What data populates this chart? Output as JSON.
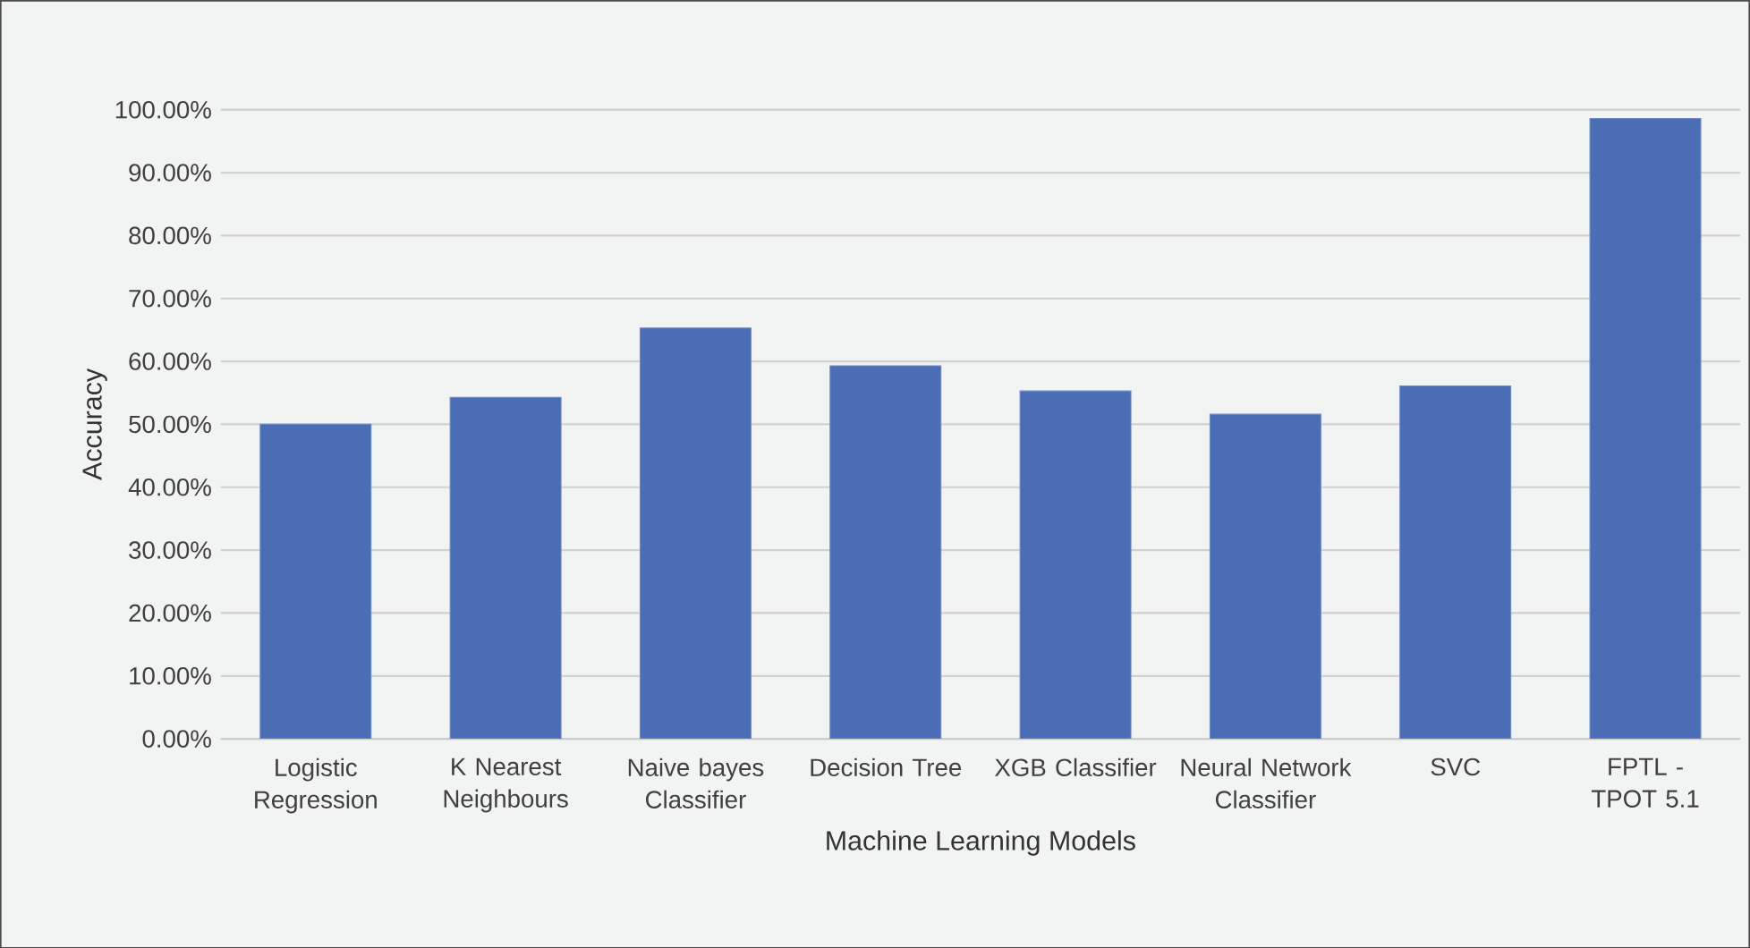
{
  "chart_data": {
    "type": "bar",
    "xlabel": "Machine Learning Models",
    "ylabel": "Accuracy",
    "categories": [
      "Logistic Regression",
      "K Nearest Neighbours",
      "Naive bayes Classifier",
      "Decision Tree",
      "XGB Classifier",
      "Neural Network Classifier",
      "SVC",
      "FPTL - TPOT 5.1"
    ],
    "values": [
      50.0,
      54.3,
      65.3,
      59.3,
      55.3,
      51.6,
      56.1,
      98.6
    ],
    "color": "#4a6db5",
    "ylim": [
      0,
      100
    ],
    "yticks": [
      {
        "value": 0,
        "label": "0.00%"
      },
      {
        "value": 10,
        "label": "10.00%"
      },
      {
        "value": 20,
        "label": "20.00%"
      },
      {
        "value": 30,
        "label": "30.00%"
      },
      {
        "value": 40,
        "label": "40.00%"
      },
      {
        "value": 50,
        "label": "50.00%"
      },
      {
        "value": 60,
        "label": "60.00%"
      },
      {
        "value": 70,
        "label": "70.00%"
      },
      {
        "value": 80,
        "label": "80.00%"
      },
      {
        "value": 90,
        "label": "90.00%"
      },
      {
        "value": 100,
        "label": "100.00%"
      }
    ],
    "grid": "y"
  }
}
